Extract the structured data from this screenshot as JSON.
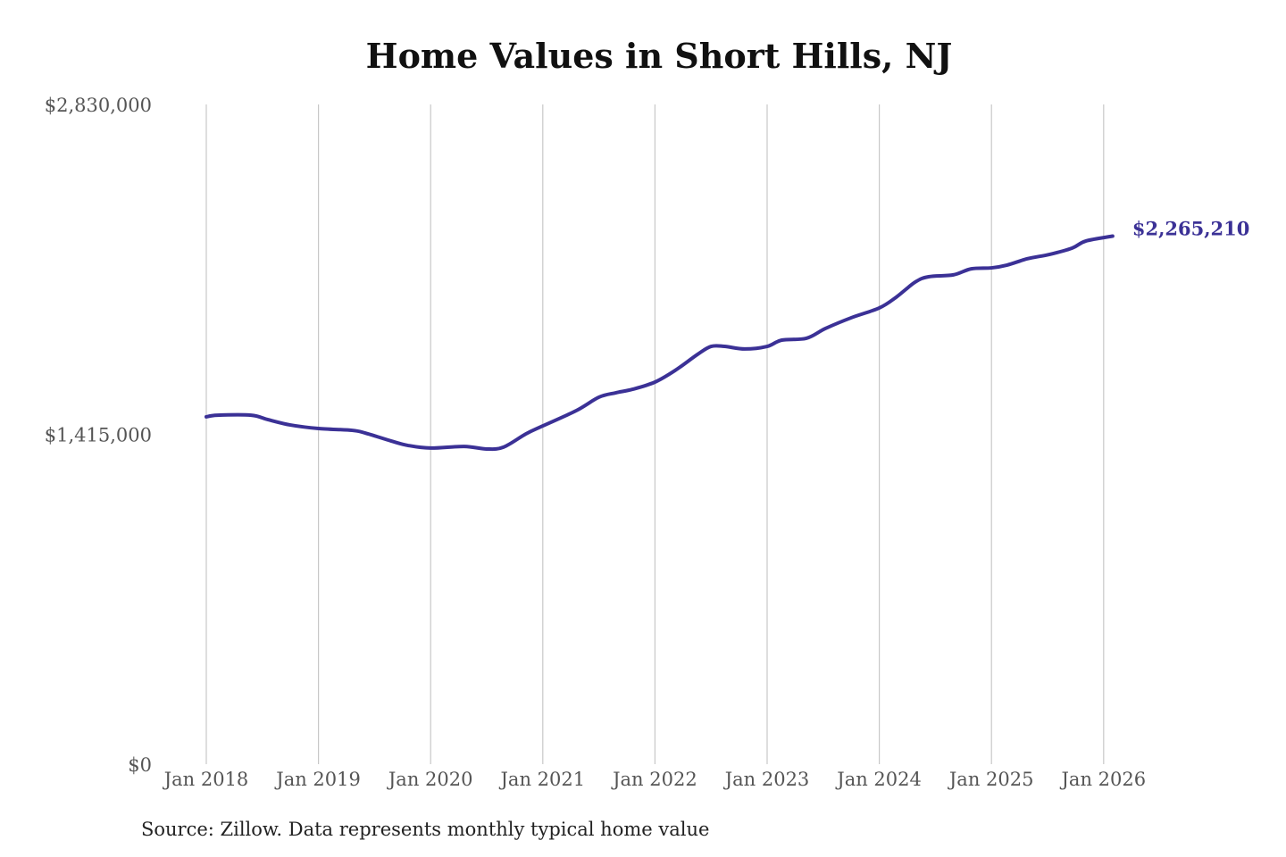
{
  "chart_data": {
    "type": "line",
    "title": "Home Values in Short Hills, NJ",
    "xlabel": "",
    "ylabel": "",
    "ylim": [
      0,
      2830000
    ],
    "y_ticks": [
      {
        "value": 0,
        "label": "$0"
      },
      {
        "value": 1415000,
        "label": "$1,415,000"
      },
      {
        "value": 2830000,
        "label": "$2,830,000"
      }
    ],
    "x_ticks": [
      {
        "value": 2018,
        "label": "Jan 2018"
      },
      {
        "value": 2019,
        "label": "Jan 2019"
      },
      {
        "value": 2020,
        "label": "Jan 2020"
      },
      {
        "value": 2021,
        "label": "Jan 2021"
      },
      {
        "value": 2022,
        "label": "Jan 2022"
      },
      {
        "value": 2023,
        "label": "Jan 2023"
      },
      {
        "value": 2024,
        "label": "Jan 2024"
      },
      {
        "value": 2025,
        "label": "Jan 2025"
      },
      {
        "value": 2026,
        "label": "Jan 2026"
      }
    ],
    "grid": "vertical",
    "series": [
      {
        "name": "Typical home value",
        "color": "#3b3196",
        "x": [
          2018.0,
          2018.1,
          2018.4,
          2018.55,
          2018.75,
          2019.0,
          2019.3,
          2019.42,
          2019.65,
          2019.8,
          2020.0,
          2020.3,
          2020.5,
          2020.65,
          2020.85,
          2021.0,
          2021.3,
          2021.5,
          2021.65,
          2021.8,
          2022.0,
          2022.18,
          2022.38,
          2022.5,
          2022.62,
          2022.8,
          2023.0,
          2023.13,
          2023.35,
          2023.52,
          2023.75,
          2024.0,
          2024.15,
          2024.32,
          2024.44,
          2024.66,
          2024.82,
          2025.0,
          2025.14,
          2025.32,
          2025.52,
          2025.72,
          2025.84,
          2026.08
        ],
        "values": [
          1490000,
          1497000,
          1497000,
          1478000,
          1455000,
          1440000,
          1432000,
          1420000,
          1386000,
          1367000,
          1356000,
          1363000,
          1352000,
          1360000,
          1417000,
          1451000,
          1517000,
          1574000,
          1593000,
          1608000,
          1639000,
          1689000,
          1758000,
          1792000,
          1792000,
          1781000,
          1792000,
          1819000,
          1827000,
          1869000,
          1915000,
          1957000,
          2003000,
          2068000,
          2091000,
          2099000,
          2125000,
          2129000,
          2141000,
          2168000,
          2187000,
          2214000,
          2244000,
          2265210
        ]
      }
    ],
    "end_label": "$2,265,210",
    "legend": "none"
  },
  "source": "Source: Zillow. Data represents monthly typical home value"
}
